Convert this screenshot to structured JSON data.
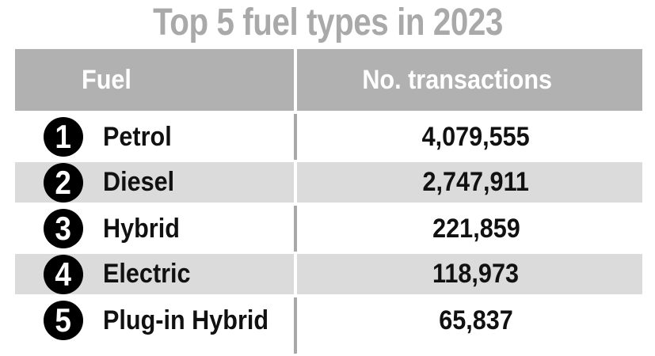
{
  "title": "Top 5 fuel types in 2023",
  "table": {
    "columns": [
      "Fuel",
      "No. transactions"
    ],
    "rows": [
      {
        "rank": "1",
        "fuel": "Petrol",
        "transactions": "4,079,555"
      },
      {
        "rank": "2",
        "fuel": "Diesel",
        "transactions": "2,747,911"
      },
      {
        "rank": "3",
        "fuel": "Hybrid",
        "transactions": "221,859"
      },
      {
        "rank": "4",
        "fuel": "Electric",
        "transactions": "118,973"
      },
      {
        "rank": "5",
        "fuel": "Plug-in Hybrid",
        "transactions": "65,837"
      }
    ]
  },
  "colors": {
    "title_text": "#a9a9a9",
    "header_bg": "#b1b1b1",
    "header_text": "#ffffff",
    "stripe_bg": "#dbdbdb",
    "badge_bg": "#000000",
    "badge_text": "#ffffff",
    "body_text": "#111111",
    "divider": "#a8a8a8"
  },
  "chart_data": {
    "type": "table",
    "title": "Top 5 fuel types in 2023",
    "columns": [
      "Fuel",
      "No. transactions"
    ],
    "rows": [
      [
        "Petrol",
        4079555
      ],
      [
        "Diesel",
        2747911
      ],
      [
        "Hybrid",
        221859
      ],
      [
        "Electric",
        118973
      ],
      [
        "Plug-in Hybrid",
        65837
      ]
    ],
    "layout": "ranked table with rank badges 1-5, alternating row shading, single column divider"
  }
}
